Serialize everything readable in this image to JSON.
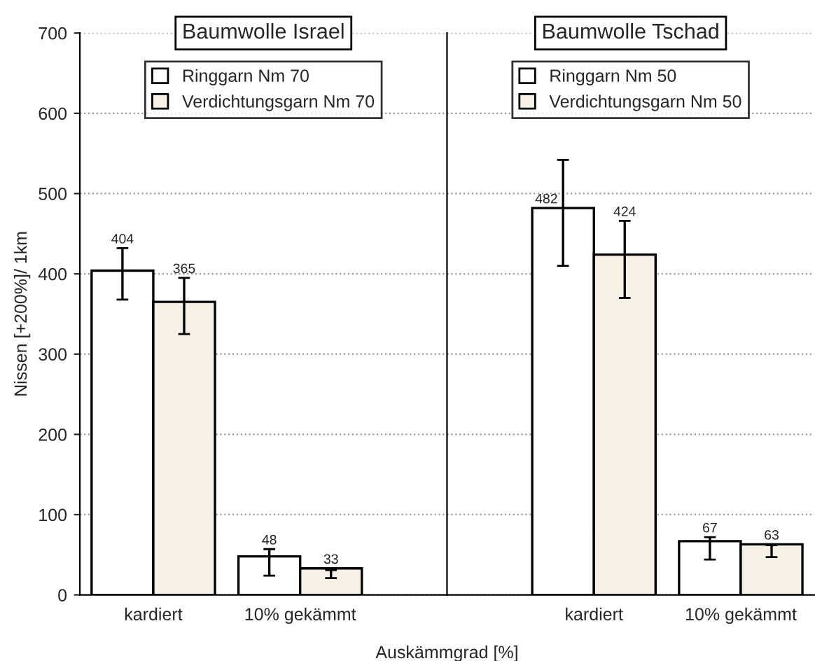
{
  "chart_data": [
    {
      "type": "bar",
      "title": "Baumwolle Israel",
      "xlabel": "Auskämmgrad [%]",
      "ylabel": "Nissen [+200%]/ 1km",
      "categories": [
        "kardiert",
        "10% gekämmt"
      ],
      "series": [
        {
          "name": "Ringgarn Nm 70",
          "color": "#ffffff",
          "values": [
            404,
            48
          ],
          "errors": [
            [
              368,
              432
            ],
            [
              24,
              57
            ]
          ]
        },
        {
          "name": "Verdichtungsgarn Nm 70",
          "color": "#f7f0e4",
          "values": [
            365,
            33
          ],
          "errors": [
            [
              325,
              395
            ],
            [
              21,
              31
            ]
          ]
        }
      ],
      "ylim": [
        0,
        700
      ],
      "yticks": [
        0,
        100,
        200,
        300,
        400,
        500,
        600,
        700
      ],
      "grid": "y",
      "legend": "top",
      "data_labels": true
    },
    {
      "type": "bar",
      "title": "Baumwolle Tschad",
      "categories": [
        "kardiert",
        "10% gekämmt"
      ],
      "series": [
        {
          "name": "Ringgarn Nm 50",
          "color": "#ffffff",
          "values": [
            482,
            67
          ],
          "errors": [
            [
              410,
              542
            ],
            [
              44,
              72
            ]
          ]
        },
        {
          "name": "Verdichtungsgarn Nm 50",
          "color": "#f7f0e4",
          "values": [
            424,
            63
          ],
          "errors": [
            [
              370,
              466
            ],
            [
              47,
              62
            ]
          ]
        }
      ],
      "ylim": [
        0,
        700
      ],
      "yticks": [
        0,
        100,
        200,
        300,
        400,
        500,
        600,
        700
      ],
      "grid": "y",
      "legend": "top",
      "data_labels": true,
      "tick_labels": "x"
    }
  ]
}
